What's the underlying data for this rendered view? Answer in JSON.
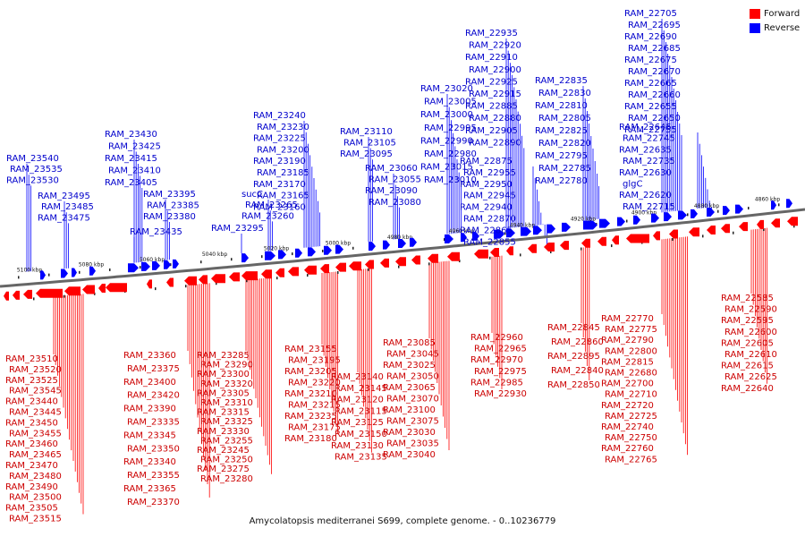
{
  "colors": {
    "forward": "#ff0000",
    "reverse": "#0000ff",
    "backbone": "#666666",
    "reverse_label": "#0000cc",
    "forward_label": "#cc0000"
  },
  "legend": [
    {
      "label": "Forward",
      "color": "#ff0000"
    },
    {
      "label": "Reverse",
      "color": "#0000ff"
    }
  ],
  "caption": "Amycolatopsis mediterranei S699, complete genome. - 0..10236779",
  "scale_labels": [
    "5100 kbp",
    "5080 kbp",
    "5060 kbp",
    "5040 kbp",
    "5020 kbp",
    "5000 kbp",
    "4980 kbp",
    "4960 kbp",
    "4940 kbp",
    "4920 kbp",
    "4900 kbp",
    "4880 kbp",
    "4860 kbp"
  ],
  "reverse_genes": [
    "RAM_23540",
    "RAM_23535",
    "RAM_23530",
    "RAM_23495",
    "RAM_23485",
    "RAM_23475",
    "RAM_23430",
    "RAM_23425",
    "RAM_23415",
    "RAM_23410",
    "RAM_23405",
    "RAM_23395",
    "RAM_23385",
    "RAM_23380",
    "RAM_23435",
    "RAM_23295",
    "sucC",
    "RAM_23265",
    "RAM_23260",
    "RAM_23240",
    "RAM_23230",
    "RAM_23225",
    "RAM_23200",
    "RAM_23190",
    "RAM_23185",
    "RAM_23170",
    "RAM_23165",
    "RAM_23160",
    "RAM_23110",
    "RAM_23105",
    "RAM_23095",
    "RAM_23060",
    "RAM_23055",
    "RAM_23090",
    "RAM_23080",
    "RAM_23020",
    "RAM_23005",
    "RAM_23000",
    "RAM_22995",
    "RAM_22990",
    "RAM_22980",
    "RAM_23015",
    "RAM_23010",
    "RAM_22935",
    "RAM_22920",
    "RAM_22910",
    "RAM_22900",
    "RAM_22925",
    "RAM_22915",
    "RAM_22885",
    "RAM_22880",
    "RAM_22905",
    "RAM_22890",
    "RAM_22875",
    "RAM_22955",
    "RAM_22950",
    "RAM_22945",
    "RAM_22940",
    "RAM_22870",
    "RAM_22865",
    "RAM_22855",
    "RAM_22835",
    "RAM_22830",
    "RAM_22810",
    "RAM_22805",
    "RAM_22825",
    "RAM_22820",
    "RAM_22795",
    "RAM_22785",
    "RAM_22780",
    "RAM_22705",
    "RAM_22695",
    "RAM_22690",
    "RAM_22685",
    "RAM_22675",
    "RAM_22670",
    "RAM_22665",
    "RAM_22660",
    "RAM_22655",
    "RAM_22650",
    "RAM_22755",
    "RAM_22645",
    "RAM_22745",
    "RAM_22635",
    "RAM_22735",
    "RAM_22630",
    "glgC",
    "RAM_22620",
    "RAM_22715"
  ],
  "forward_genes": [
    "RAM_23510",
    "RAM_23520",
    "RAM_23525",
    "RAM_23545",
    "RAM_23440",
    "RAM_23445",
    "RAM_23450",
    "RAM_23455",
    "RAM_23460",
    "RAM_23465",
    "RAM_23470",
    "RAM_23480",
    "RAM_23490",
    "RAM_23500",
    "RAM_23505",
    "RAM_23515",
    "RAM_23360",
    "RAM_23375",
    "RAM_23400",
    "RAM_23420",
    "RAM_23390",
    "RAM_23335",
    "RAM_23345",
    "RAM_23350",
    "RAM_23340",
    "RAM_23355",
    "RAM_23365",
    "RAM_23370",
    "RAM_23285",
    "RAM_23290",
    "RAM_23300",
    "RAM_23320",
    "RAM_23305",
    "RAM_23310",
    "RAM_23315",
    "RAM_23325",
    "RAM_23330",
    "RAM_23255",
    "RAM_23245",
    "RAM_23250",
    "RAM_23275",
    "RAM_23280",
    "RAM_23155",
    "RAM_23195",
    "RAM_23205",
    "RAM_23220",
    "RAM_23210",
    "RAM_23215",
    "RAM_23235",
    "RAM_23175",
    "RAM_23180",
    "RAM_23140",
    "RAM_23145",
    "RAM_23120",
    "RAM_23115",
    "RAM_23125",
    "RAM_23150",
    "RAM_23130",
    "RAM_23135",
    "RAM_23085",
    "RAM_23045",
    "RAM_23025",
    "RAM_23050",
    "RAM_23065",
    "RAM_23070",
    "RAM_23100",
    "RAM_23075",
    "RAM_23030",
    "RAM_23035",
    "RAM_23040",
    "RAM_22960",
    "RAM_22965",
    "RAM_22970",
    "RAM_22975",
    "RAM_22985",
    "RAM_22930",
    "RAM_22845",
    "RAM_22860",
    "RAM_22895",
    "RAM_22840",
    "RAM_22850",
    "RAM_22770",
    "RAM_22775",
    "RAM_22790",
    "RAM_22800",
    "RAM_22815",
    "RAM_22680",
    "RAM_22700",
    "RAM_22710",
    "RAM_22720",
    "RAM_22725",
    "RAM_22740",
    "RAM_22750",
    "RAM_22760",
    "RAM_22765",
    "RAM_22585",
    "RAM_22590",
    "RAM_22595",
    "RAM_22600",
    "RAM_22605",
    "RAM_22610",
    "RAM_22615",
    "RAM_22625",
    "RAM_22640"
  ]
}
